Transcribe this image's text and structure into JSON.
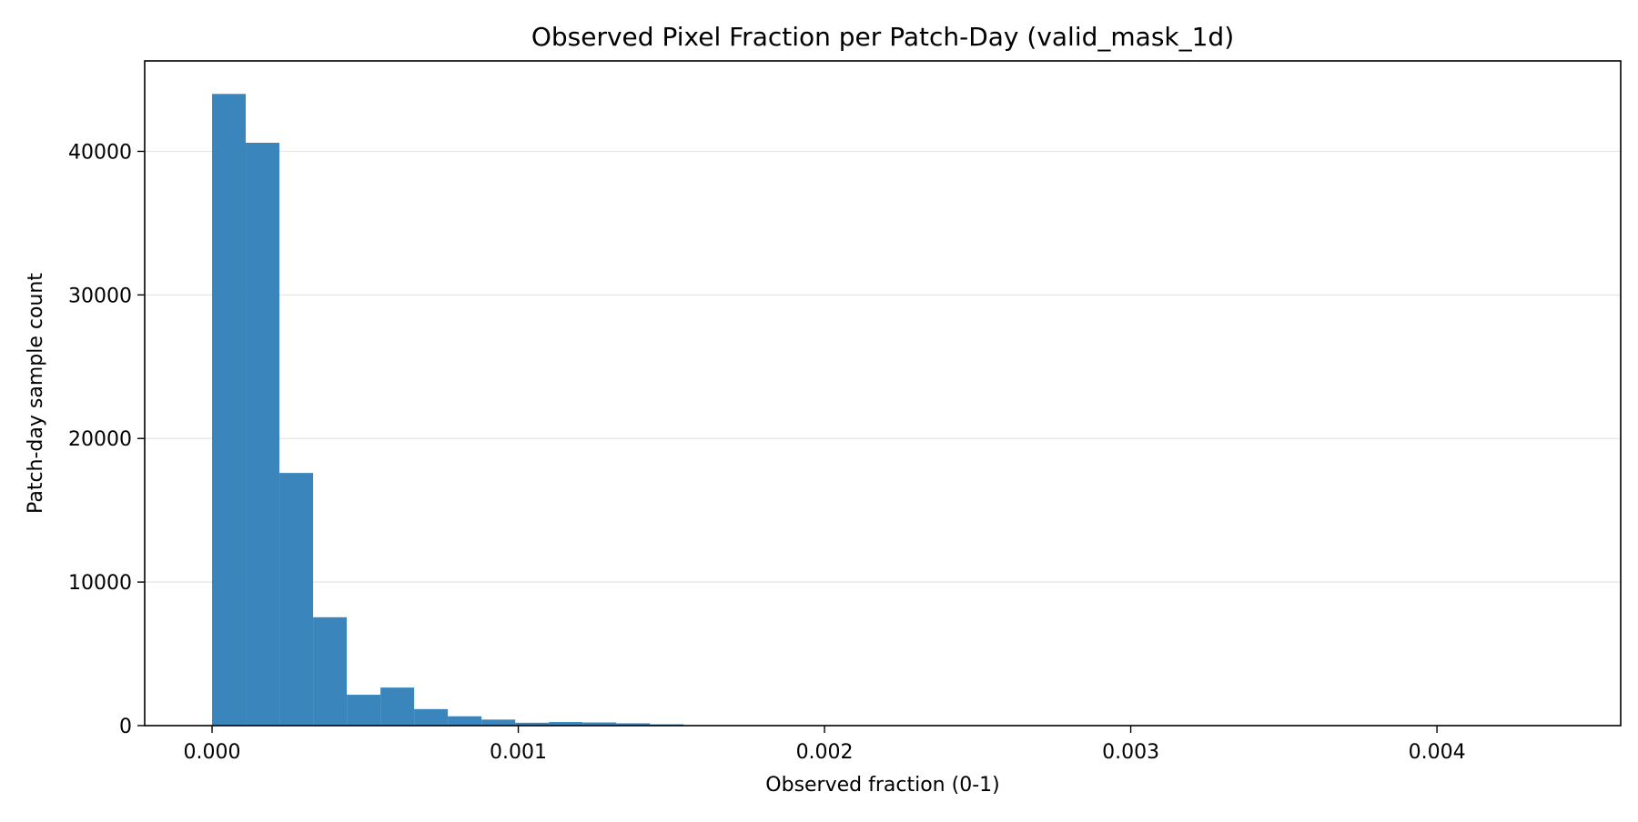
{
  "chart_data": {
    "type": "bar",
    "title": "Observed Pixel Fraction per Patch-Day (valid_mask_1d)",
    "xlabel": "Observed fraction (0-1)",
    "ylabel": "Patch-day sample count",
    "xlim": [
      -0.00022,
      0.0046
    ],
    "ylim": [
      0,
      46300
    ],
    "grid": {
      "y": true,
      "x": false
    },
    "bar_color": "#2e7eb8",
    "grid_color": "#e6e6e6",
    "bin_width": 0.00011,
    "bin_edges_start": 0.0,
    "bins": [
      {
        "x0": 0.0,
        "x1": 0.00011,
        "value": 44000
      },
      {
        "x0": 0.00011,
        "x1": 0.00022,
        "value": 40600
      },
      {
        "x0": 0.00022,
        "x1": 0.00033,
        "value": 17600
      },
      {
        "x0": 0.00033,
        "x1": 0.00044,
        "value": 7550
      },
      {
        "x0": 0.00044,
        "x1": 0.00055,
        "value": 2150
      },
      {
        "x0": 0.00055,
        "x1": 0.00066,
        "value": 2650
      },
      {
        "x0": 0.00066,
        "x1": 0.00077,
        "value": 1150
      },
      {
        "x0": 0.00077,
        "x1": 0.00088,
        "value": 650
      },
      {
        "x0": 0.00088,
        "x1": 0.00099,
        "value": 420
      },
      {
        "x0": 0.00099,
        "x1": 0.0011,
        "value": 200
      },
      {
        "x0": 0.0011,
        "x1": 0.00121,
        "value": 250
      },
      {
        "x0": 0.00121,
        "x1": 0.00132,
        "value": 220
      },
      {
        "x0": 0.00132,
        "x1": 0.00143,
        "value": 160
      },
      {
        "x0": 0.00143,
        "x1": 0.00154,
        "value": 90
      }
    ],
    "x_ticks": [
      {
        "value": 0.0,
        "label": "0.000"
      },
      {
        "value": 0.001,
        "label": "0.001"
      },
      {
        "value": 0.002,
        "label": "0.002"
      },
      {
        "value": 0.003,
        "label": "0.003"
      },
      {
        "value": 0.004,
        "label": "0.004"
      }
    ],
    "y_ticks": [
      {
        "value": 0,
        "label": "0"
      },
      {
        "value": 10000,
        "label": "10000"
      },
      {
        "value": 20000,
        "label": "20000"
      },
      {
        "value": 30000,
        "label": "30000"
      },
      {
        "value": 40000,
        "label": "40000"
      }
    ]
  }
}
